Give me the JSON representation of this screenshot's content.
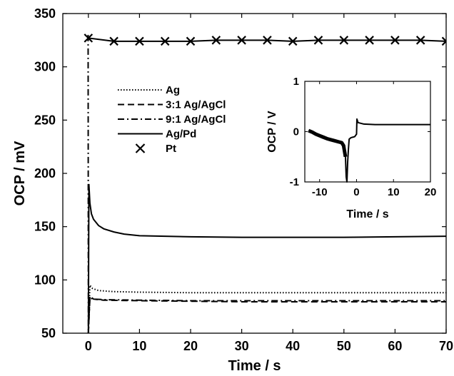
{
  "chart_data": {
    "type": "line",
    "xlabel": "Time / s",
    "ylabel": "OCP / mV",
    "xlim": [
      -5,
      70
    ],
    "ylim": [
      50,
      350
    ],
    "xticks": [
      "0",
      "10",
      "20",
      "30",
      "40",
      "50",
      "60",
      "70"
    ],
    "yticks": [
      "50",
      "100",
      "150",
      "200",
      "250",
      "300",
      "350"
    ],
    "grid": false,
    "legend_position": "upper-left",
    "colors": {
      "line": "#000000",
      "background": "#ffffff"
    },
    "series": [
      {
        "name": "Ag",
        "style": "dotted",
        "x": [
          0,
          0.3,
          0.8,
          2,
          5,
          10,
          20,
          30,
          40,
          50,
          60,
          70
        ],
        "y": [
          50,
          95,
          92,
          90,
          89,
          88.5,
          88,
          88,
          88,
          88,
          88,
          88
        ]
      },
      {
        "name": "3:1 Ag/AgCl",
        "style": "dashed",
        "x": [
          0,
          0.3,
          1,
          3,
          10,
          20,
          30,
          40,
          50,
          60,
          70
        ],
        "y": [
          50,
          85,
          82,
          81,
          80.5,
          80,
          79.5,
          79.5,
          79.5,
          79.5,
          79.5
        ]
      },
      {
        "name": "9:1 Ag/AgCl",
        "style": "dashdot",
        "x": [
          -0.05,
          0,
          0.3,
          1,
          3,
          10,
          20,
          30,
          40,
          50,
          60,
          70
        ],
        "y": [
          330,
          50,
          83,
          82,
          81.5,
          81,
          80.5,
          80.5,
          80.5,
          80.5,
          80.5,
          80.5
        ]
      },
      {
        "name": "Ag/Pd",
        "style": "solid",
        "x": [
          0,
          0.1,
          0.3,
          0.6,
          1,
          1.5,
          2,
          3,
          5,
          7,
          10,
          15,
          20,
          30,
          40,
          50,
          60,
          70
        ],
        "y": [
          50,
          190,
          172,
          162,
          157,
          154,
          151,
          148,
          145,
          143,
          141.5,
          141,
          140.5,
          140,
          140,
          140,
          140.5,
          141
        ]
      },
      {
        "name": "Pt",
        "style": "solid-cross",
        "x": [
          0,
          5,
          10,
          15,
          20,
          25,
          30,
          35,
          40,
          45,
          50,
          55,
          60,
          65,
          70
        ],
        "y": [
          327,
          324,
          324,
          324,
          324,
          325,
          325,
          325,
          324,
          325,
          325,
          325,
          325,
          325,
          324
        ]
      }
    ],
    "inset": {
      "type": "line",
      "xlabel": "Time / s",
      "ylabel": "OCP / V",
      "xlim": [
        -14,
        20
      ],
      "ylim": [
        -1,
        1
      ],
      "xticks": [
        "-10",
        "0",
        "10",
        "20"
      ],
      "yticks": [
        "-1",
        "0",
        "1"
      ],
      "x": [
        -13,
        -12,
        -11,
        -10,
        -9,
        -8,
        -7,
        -6,
        -5,
        -4,
        -3.5,
        -3,
        -2.8,
        -2.6,
        -2.4,
        -2.2,
        -2,
        -1.5,
        -1,
        -0.5,
        0,
        0.1,
        0.4,
        2,
        5,
        10,
        15,
        20
      ],
      "y": [
        0.02,
        -0.01,
        -0.05,
        -0.08,
        -0.11,
        -0.14,
        -0.16,
        -0.18,
        -0.2,
        -0.22,
        -0.28,
        -0.5,
        -0.9,
        -1,
        -0.6,
        -0.35,
        -0.15,
        -0.12,
        -0.11,
        -0.1,
        -0.05,
        0.25,
        0.18,
        0.15,
        0.14,
        0.14,
        0.14,
        0.14
      ]
    }
  }
}
